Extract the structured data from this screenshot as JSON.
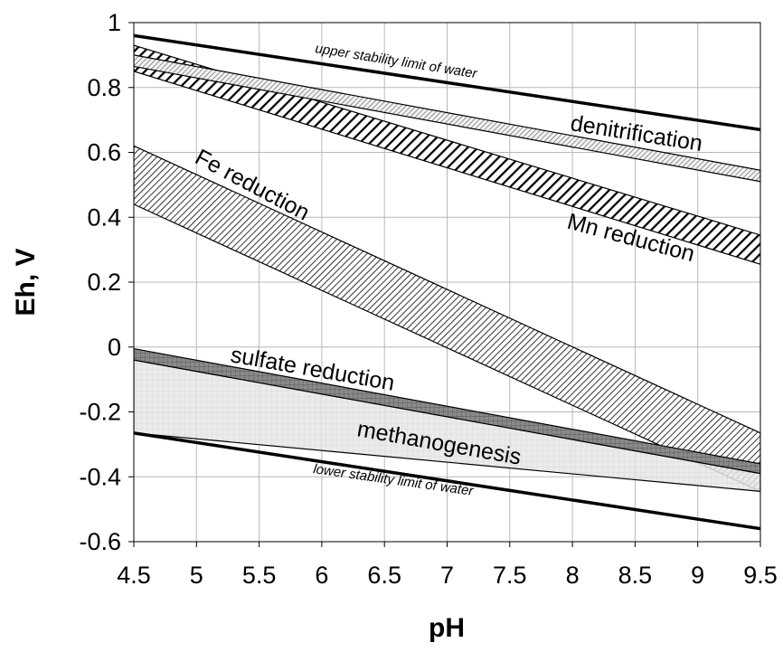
{
  "chart_data": {
    "type": "area",
    "xlabel": "pH",
    "ylabel": "Eh, V",
    "xlim": [
      4.5,
      9.5
    ],
    "ylim": [
      -0.6,
      1.0
    ],
    "x_ticks": [
      "4.5",
      "5",
      "5.5",
      "6",
      "6.5",
      "7",
      "7.5",
      "8",
      "8.5",
      "9",
      "9.5"
    ],
    "y_ticks": [
      "1",
      "0.8",
      "0.6",
      "0.4",
      "0.2",
      "0",
      "-0.2",
      "-0.4",
      "-0.6"
    ],
    "grid": true,
    "lines": [
      {
        "name": "upper stability limit of water",
        "x": [
          4.5,
          9.5
        ],
        "y": [
          0.96,
          0.67
        ]
      },
      {
        "name": "lower stability limit of water",
        "x": [
          4.5,
          9.5
        ],
        "y": [
          -0.265,
          -0.56
        ]
      }
    ],
    "bands": [
      {
        "name": "denitrification",
        "x": [
          4.5,
          9.5
        ],
        "upper": [
          0.9,
          0.545
        ],
        "lower": [
          0.865,
          0.51
        ],
        "pattern": "dots"
      },
      {
        "name": "Mn reduction",
        "x": [
          4.5,
          9.5
        ],
        "upper": [
          0.93,
          0.345
        ],
        "lower": [
          0.85,
          0.255
        ],
        "pattern": "bold-hatch"
      },
      {
        "name": "Fe reduction",
        "x": [
          4.5,
          9.5
        ],
        "upper": [
          0.62,
          -0.265
        ],
        "lower": [
          0.44,
          -0.445
        ],
        "pattern": "fine-hatch"
      },
      {
        "name": "methanogenesis",
        "x": [
          4.5,
          9.5
        ],
        "upper": [
          -0.04,
          -0.39
        ],
        "lower": [
          -0.265,
          -0.445
        ],
        "pattern": "light-grid"
      },
      {
        "name": "sulfate reduction",
        "x": [
          4.5,
          9.5
        ],
        "upper": [
          -0.005,
          -0.36
        ],
        "lower": [
          -0.04,
          -0.39
        ],
        "pattern": "dark-grid"
      }
    ],
    "annotations": {
      "upper_water": "upper stability limit of water",
      "lower_water": "lower stability limit of water",
      "denitrification": "denitrification",
      "mn": "Mn reduction",
      "fe": "Fe reduction",
      "sulfate": "sulfate reduction",
      "methanogenesis": "methanogenesis"
    }
  }
}
